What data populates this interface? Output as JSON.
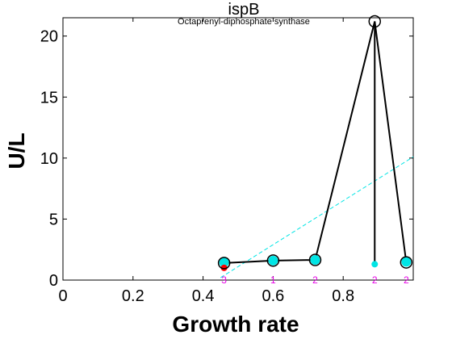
{
  "chart_data": {
    "type": "line",
    "title": "ispB",
    "subtitle": "Octaprenyl-diphosphate synthase",
    "xlabel": "Growth rate",
    "ylabel": "U/L",
    "xlim": [
      0,
      1.0
    ],
    "ylim": [
      0,
      21.5
    ],
    "xticks": [
      0,
      0.2,
      0.4,
      0.6,
      0.8
    ],
    "xtick_labels": [
      "0",
      "0.2",
      "0.4",
      "0.6",
      "0.8"
    ],
    "yticks": [
      0,
      5,
      10,
      15,
      20
    ],
    "ytick_labels": [
      "0",
      "5",
      "10",
      "15",
      "20"
    ],
    "grid": false,
    "series": [
      {
        "style": "black line with open circle markers",
        "color": "#000000",
        "x": [
          0.46,
          0.6,
          0.72,
          0.89,
          0.98
        ],
        "y": [
          1.4,
          1.6,
          1.65,
          21.2,
          1.45
        ]
      },
      {
        "style": "cyan filled circles (replicates)",
        "color": "#00e5e5",
        "x": [
          0.46,
          0.6,
          0.72,
          0.89,
          0.98
        ],
        "y": [
          1.45,
          1.6,
          1.65,
          1.3,
          1.5
        ]
      },
      {
        "style": "red filled point",
        "color": "#ff0000",
        "x": [
          0.46
        ],
        "y": [
          1.0
        ]
      },
      {
        "style": "cyan dashed fit line",
        "color": "#00e5e5",
        "x": [
          0.45,
          1.0
        ],
        "y": [
          0.2,
          10.1
        ]
      }
    ],
    "replicate_counts": [
      {
        "x": 0.46,
        "label": "3"
      },
      {
        "x": 0.6,
        "label": "1"
      },
      {
        "x": 0.72,
        "label": "2"
      },
      {
        "x": 0.89,
        "label": "2"
      },
      {
        "x": 0.98,
        "label": "2"
      }
    ],
    "annotation_color": "#e600e6"
  }
}
